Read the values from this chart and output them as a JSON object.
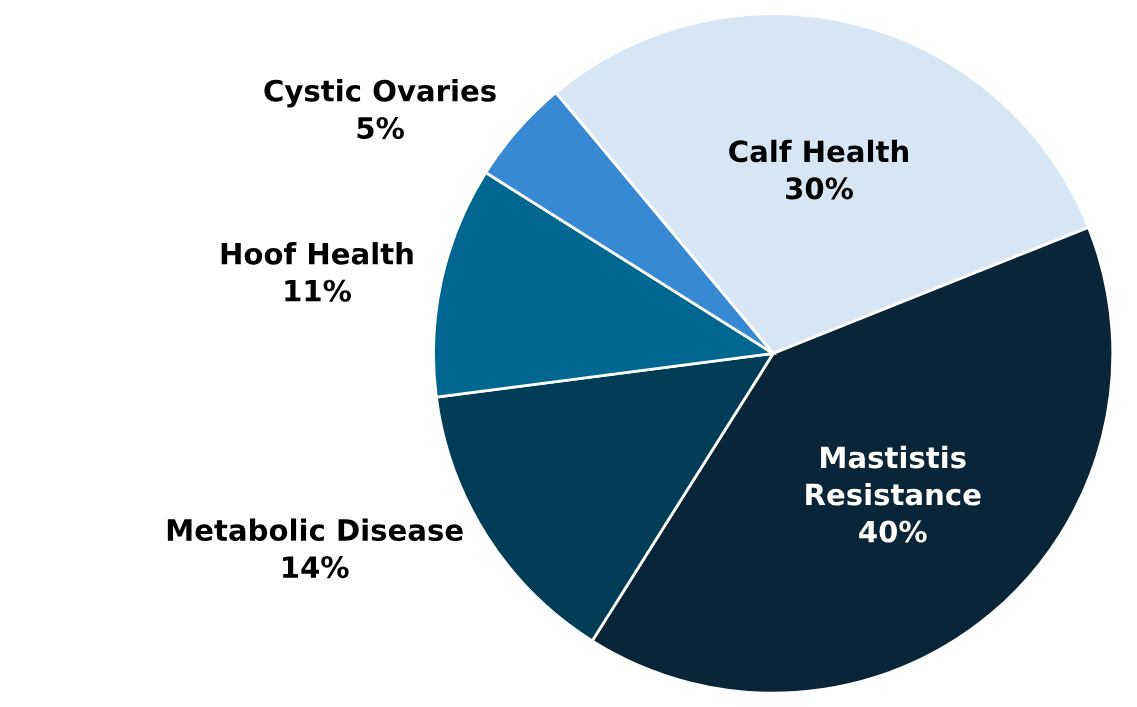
{
  "chart_data": {
    "type": "pie",
    "categories": [
      "Calf Health",
      "Mastistis\nResistance",
      "Metabolic Disease",
      "Hoof Health",
      "Cystic Ovaries"
    ],
    "values": [
      30,
      40,
      14,
      11,
      5
    ],
    "colors": [
      "#d6e6f4",
      "#0b2538",
      "#023d57",
      "#006890",
      "#3889d3"
    ],
    "value_labels": [
      "30%",
      "40%",
      "14%",
      "11%",
      "5%"
    ],
    "legend": false
  }
}
